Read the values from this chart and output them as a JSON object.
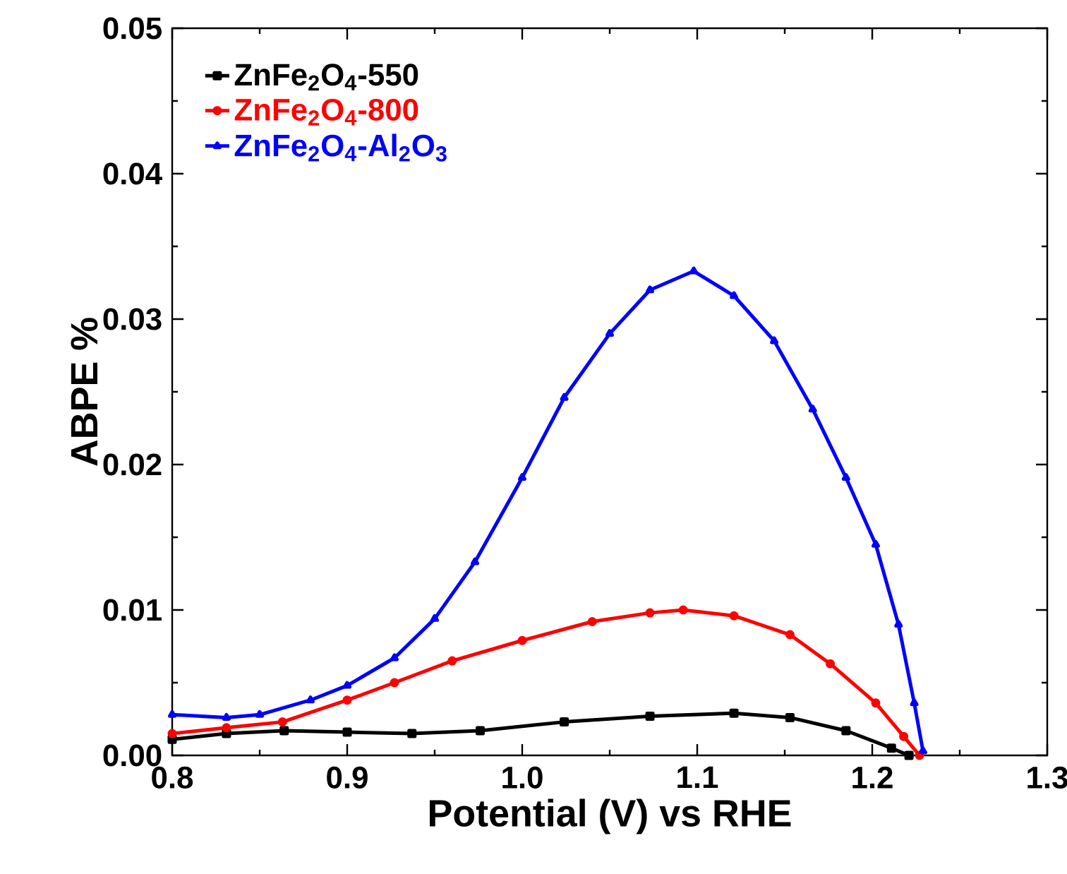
{
  "chart_data": {
    "type": "line",
    "xlabel": "Potential (V) vs RHE",
    "ylabel": "ABPE %",
    "xlim": [
      0.8,
      1.3
    ],
    "ylim": [
      0,
      0.05
    ],
    "xticks": [
      {
        "value": 0.8,
        "label": "0.8"
      },
      {
        "value": 0.9,
        "label": "0.9"
      },
      {
        "value": 1.0,
        "label": "1.0"
      },
      {
        "value": 1.1,
        "label": "1.1"
      },
      {
        "value": 1.2,
        "label": "1.2"
      },
      {
        "value": 1.3,
        "label": "1.3"
      }
    ],
    "yticks": [
      {
        "value": 0,
        "label": "0.00"
      },
      {
        "value": 0.01,
        "label": "0.01"
      },
      {
        "value": 0.02,
        "label": "0.02"
      },
      {
        "value": 0.03,
        "label": "0.03"
      },
      {
        "value": 0.04,
        "label": "0.04"
      },
      {
        "value": 0.05,
        "label": "0.05"
      }
    ],
    "legend": "top left",
    "grid": false,
    "series": [
      {
        "name": "ZnFe$_{2}$O$_{4}$-550",
        "color": "#000000",
        "marker": "square",
        "x": [
          0.8,
          0.831,
          0.864,
          0.9,
          0.937,
          0.976,
          1.024,
          1.073,
          1.121,
          1.153,
          1.185,
          1.211,
          1.221
        ],
        "values": [
          0.0011,
          0.0015,
          0.0017,
          0.0016,
          0.0015,
          0.0017,
          0.0023,
          0.0027,
          0.0029,
          0.0026,
          0.0017,
          0.0005,
          0.0
        ]
      },
      {
        "name": "ZnFe$_{2}$O$_{4}$-800",
        "color": "#ff0000",
        "marker": "circle",
        "x": [
          0.8,
          0.831,
          0.863,
          0.9,
          0.927,
          0.96,
          1.0,
          1.04,
          1.073,
          1.092,
          1.121,
          1.153,
          1.176,
          1.202,
          1.218,
          1.227
        ],
        "values": [
          0.0015,
          0.0019,
          0.0023,
          0.0038,
          0.005,
          0.0065,
          0.0079,
          0.0092,
          0.0098,
          0.01,
          0.0096,
          0.0083,
          0.0063,
          0.0036,
          0.0013,
          0.0
        ]
      },
      {
        "name": "ZnFe$_{2}$O$_{4}$-Al$_{2}$O$_{3}$",
        "color": "#0000ff",
        "marker": "triangle",
        "x": [
          0.8,
          0.831,
          0.85,
          0.879,
          0.9,
          0.927,
          0.95,
          0.973,
          1.0,
          1.024,
          1.05,
          1.073,
          1.098,
          1.121,
          1.144,
          1.166,
          1.185,
          1.202,
          1.215,
          1.224,
          1.229
        ],
        "values": [
          0.0028,
          0.0026,
          0.0028,
          0.0038,
          0.0048,
          0.0067,
          0.0094,
          0.0133,
          0.0191,
          0.0246,
          0.029,
          0.032,
          0.0333,
          0.0316,
          0.0285,
          0.0238,
          0.0191,
          0.0145,
          0.009,
          0.0036,
          0.0003
        ]
      }
    ]
  }
}
